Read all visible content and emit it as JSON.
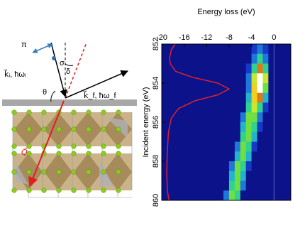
{
  "diagram": {
    "labels": {
      "pi": "π",
      "sigma": "σ",
      "theta": "θ",
      "delta": "δ",
      "k_in": "k⃗ᵢ, ħωᵢ",
      "k_out": "k⃗_f, ħω_f",
      "q": "Q⃗"
    }
  },
  "chart_data": {
    "type": "heatmap",
    "xlabel": "Energy loss (eV)",
    "ylabel": "Incident energy (eV)",
    "xlim": [
      -20,
      3
    ],
    "ylim": [
      852,
      860
    ],
    "xticks": [
      -20,
      -16,
      -12,
      -8,
      -4,
      0
    ],
    "yticks": [
      852,
      854,
      856,
      858,
      860
    ],
    "z": [
      [
        0,
        0,
        0,
        0,
        0,
        0,
        0,
        0,
        0,
        0,
        0,
        0,
        0,
        0,
        0,
        0,
        1,
        2,
        1,
        0,
        0,
        0,
        0
      ],
      [
        0,
        0,
        0,
        0,
        0,
        0,
        0,
        0,
        0,
        0,
        0,
        0,
        0,
        0,
        0,
        0,
        2,
        4,
        2,
        0,
        0,
        0,
        0
      ],
      [
        0,
        0,
        0,
        0,
        0,
        0,
        0,
        0,
        0,
        0,
        0,
        0,
        0,
        0,
        0,
        1,
        4,
        8,
        4,
        0,
        0,
        0,
        0
      ],
      [
        0,
        0,
        0,
        0,
        0,
        0,
        0,
        0,
        0,
        0,
        0,
        0,
        0,
        0,
        0,
        2,
        6,
        10,
        6,
        0,
        0,
        0,
        0
      ],
      [
        0,
        0,
        0,
        0,
        0,
        0,
        0,
        0,
        0,
        0,
        0,
        0,
        0,
        0,
        0,
        2,
        7,
        10,
        5,
        0,
        0,
        0,
        0
      ],
      [
        0,
        0,
        0,
        0,
        0,
        0,
        0,
        0,
        0,
        0,
        0,
        0,
        0,
        0,
        0,
        3,
        7,
        8,
        3,
        0,
        0,
        0,
        0
      ],
      [
        0,
        0,
        0,
        0,
        0,
        0,
        0,
        0,
        0,
        0,
        0,
        0,
        0,
        0,
        0,
        4,
        6,
        4,
        1,
        0,
        0,
        0,
        0
      ],
      [
        0,
        0,
        0,
        0,
        0,
        0,
        0,
        0,
        0,
        0,
        0,
        0,
        0,
        0,
        2,
        5,
        5,
        2,
        0,
        0,
        0,
        0,
        0
      ],
      [
        0,
        0,
        0,
        0,
        0,
        0,
        0,
        0,
        0,
        0,
        0,
        0,
        0,
        0,
        3,
        5,
        4,
        1,
        0,
        0,
        0,
        0,
        0
      ],
      [
        0,
        0,
        0,
        0,
        0,
        0,
        0,
        0,
        0,
        0,
        0,
        0,
        0,
        0,
        4,
        5,
        3,
        0,
        0,
        0,
        0,
        0,
        0
      ],
      [
        0,
        0,
        0,
        0,
        0,
        0,
        0,
        0,
        0,
        0,
        0,
        0,
        0,
        2,
        5,
        4,
        1,
        0,
        0,
        0,
        0,
        0,
        0
      ],
      [
        0,
        0,
        0,
        0,
        0,
        0,
        0,
        0,
        0,
        0,
        0,
        0,
        0,
        3,
        5,
        3,
        0,
        0,
        0,
        0,
        0,
        0,
        0
      ],
      [
        0,
        0,
        0,
        0,
        0,
        0,
        0,
        0,
        0,
        0,
        0,
        0,
        2,
        5,
        4,
        1,
        0,
        0,
        0,
        0,
        0,
        0,
        0
      ],
      [
        0,
        0,
        0,
        0,
        0,
        0,
        0,
        0,
        0,
        0,
        0,
        0,
        3,
        5,
        3,
        0,
        0,
        0,
        0,
        0,
        0,
        0,
        0
      ],
      [
        0,
        0,
        0,
        0,
        0,
        0,
        0,
        0,
        0,
        0,
        0,
        0,
        4,
        5,
        2,
        0,
        0,
        0,
        0,
        0,
        0,
        0,
        0
      ],
      [
        0,
        0,
        0,
        0,
        0,
        0,
        0,
        0,
        0,
        0,
        0,
        2,
        5,
        4,
        0,
        0,
        0,
        0,
        0,
        0,
        0,
        0,
        0
      ]
    ],
    "curve": {
      "color": "#e0202a",
      "y": [
        852.0,
        852.3,
        852.7,
        853.0,
        853.4,
        853.7,
        854.0,
        854.3,
        854.6,
        854.9,
        855.3,
        855.8,
        856.5,
        857.5,
        858.5,
        859.5,
        860.0
      ],
      "x": [
        -17.6,
        -18.3,
        -18.6,
        -18.5,
        -17.5,
        -14.5,
        -10,
        -8,
        -10,
        -14,
        -17,
        -18.3,
        -18.8,
        -19,
        -19.1,
        -19,
        -18.7
      ]
    }
  }
}
